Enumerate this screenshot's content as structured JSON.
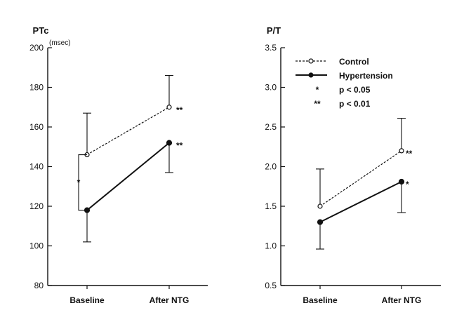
{
  "chart_data": [
    {
      "type": "line",
      "ylabel": "PTc",
      "yunit": "(msec)",
      "ylim": [
        80,
        200
      ],
      "yticks": [
        "80",
        "100",
        "120",
        "140",
        "160",
        "180",
        "200"
      ],
      "categories": [
        "Baseline",
        "After NTG"
      ],
      "series": [
        {
          "name": "Control",
          "style": "dashed",
          "marker": "open-circle",
          "values": [
            146,
            170
          ],
          "error_upper": [
            167,
            186
          ],
          "significance": [
            "",
            "**"
          ]
        },
        {
          "name": "Hypertension",
          "style": "solid",
          "marker": "filled-circle",
          "values": [
            118,
            152
          ],
          "error_lower": [
            102,
            137
          ],
          "significance": [
            "",
            "**"
          ]
        }
      ],
      "between_group": {
        "category": "Baseline",
        "label": "*"
      }
    },
    {
      "type": "line",
      "ylabel": "P/T",
      "ylim": [
        0.5,
        3.5
      ],
      "yticks": [
        "0.5",
        "1.0",
        "1.5",
        "2.0",
        "2.5",
        "3.0",
        "3.5"
      ],
      "categories": [
        "Baseline",
        "After NTG"
      ],
      "series": [
        {
          "name": "Control",
          "style": "dashed",
          "marker": "open-circle",
          "values": [
            1.5,
            2.2
          ],
          "error_upper": [
            1.97,
            2.61
          ],
          "significance": [
            "",
            "**"
          ]
        },
        {
          "name": "Hypertension",
          "style": "solid",
          "marker": "filled-circle",
          "values": [
            1.3,
            1.81
          ],
          "error_lower": [
            0.96,
            1.42
          ],
          "significance": [
            "",
            "*"
          ]
        }
      ],
      "legend": {
        "placement": "top-left",
        "entries": [
          {
            "symbol": "dashed-open-circle",
            "label": "Control"
          },
          {
            "symbol": "solid-filled-circle",
            "label": "Hypertension"
          },
          {
            "symbol": "*",
            "label": "p < 0.05"
          },
          {
            "symbol": "**",
            "label": "p < 0.01"
          }
        ]
      }
    }
  ]
}
